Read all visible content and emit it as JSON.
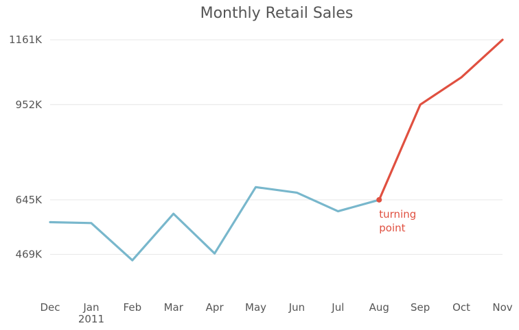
{
  "chart_data": {
    "type": "line",
    "title": "Monthly Retail Sales",
    "x_labels": [
      "Dec",
      "Jan",
      "Feb",
      "Mar",
      "Apr",
      "May",
      "Jun",
      "Jul",
      "Aug",
      "Sep",
      "Oct",
      "Nov"
    ],
    "x_sublabels": [
      "",
      "2011",
      "",
      "",
      "",
      "",
      "",
      "",
      "",
      "",
      "",
      ""
    ],
    "y_ticks": [
      {
        "value": 469,
        "label": "469K"
      },
      {
        "value": 645,
        "label": "645K"
      },
      {
        "value": 952,
        "label": "952K"
      },
      {
        "value": 1161,
        "label": "1161K"
      }
    ],
    "ylim": [
      340,
      1190
    ],
    "grid": true,
    "values": [
      573,
      570,
      450,
      600,
      472,
      686,
      668,
      608,
      645,
      952,
      1040,
      1161
    ],
    "series": [
      {
        "from_index": 0,
        "to_index": 8,
        "color": "#78b7cc"
      },
      {
        "from_index": 8,
        "to_index": 11,
        "color": "#e05040"
      }
    ],
    "annotation": {
      "index": 8,
      "lines": [
        "turning",
        "point"
      ],
      "color": "#e05040"
    }
  }
}
